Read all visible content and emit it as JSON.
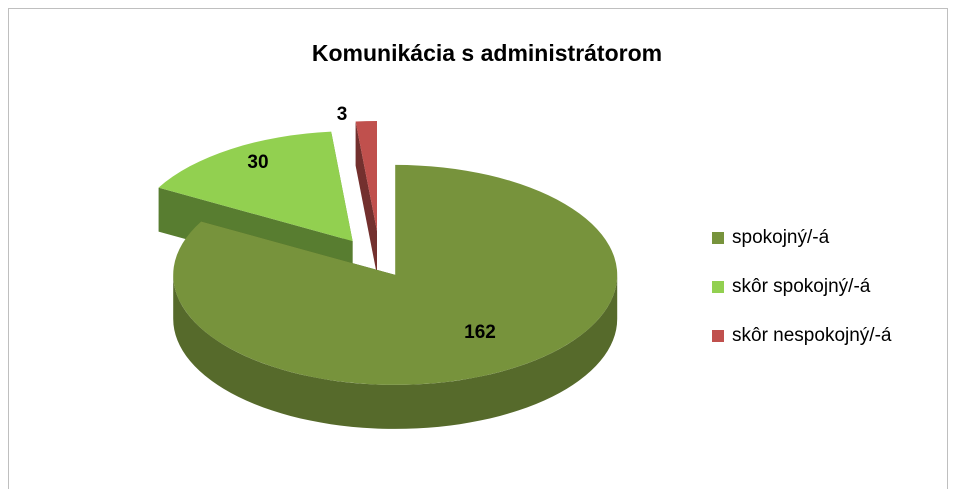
{
  "chart_data": {
    "type": "pie",
    "title": "Komunikácia s administrátorom",
    "categories": [
      "spokojný/-á",
      "skôr spokojný/-á",
      "skôr nespokojný/-á"
    ],
    "values": [
      162,
      30,
      3
    ],
    "colors": [
      "#77933c",
      "#92d050",
      "#c0504d"
    ],
    "legend": "right",
    "three_d": true,
    "exploded": true
  }
}
